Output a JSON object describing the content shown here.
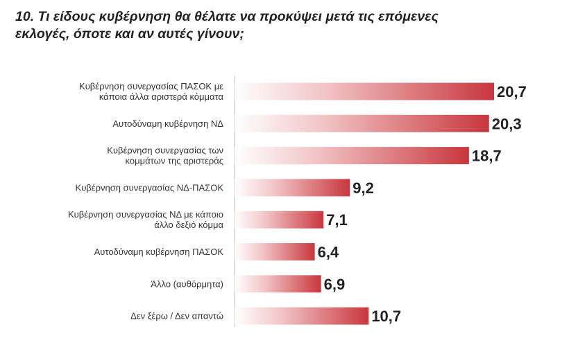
{
  "title_lines": [
    "10. Τι είδους κυβέρνηση θα θέλατε να προκύψει μετά τις επόμενες",
    "εκλογές, όποτε και αν αυτές γίνουν;"
  ],
  "chart_data": {
    "type": "bar",
    "orientation": "horizontal",
    "title": "10. Τι είδους κυβέρνηση θα θέλατε να προκύψει μετά τις επόμενες εκλογές, όποτε και αν αυτές γίνουν;",
    "xlabel": "",
    "ylabel": "",
    "xlim": [
      0,
      20.7
    ],
    "grid": false,
    "legend": "none",
    "bar_color": "#c8373d",
    "categories": [
      [
        "Κυβέρνηση συνεργασίας ΠΑΣΟΚ με",
        "κάποια άλλα αριστερά κόμματα"
      ],
      [
        "Αυτοδύναμη κυβέρνηση ΝΔ"
      ],
      [
        "Κυβέρνηση συνεργασίας των",
        "κομμάτων της αριστεράς"
      ],
      [
        "Κυβέρνηση συνεργασίας ΝΔ-ΠΑΣΟΚ"
      ],
      [
        "Κυβέρνηση συνεργασίας ΝΔ με κάποιο",
        "άλλο δεξιό κόμμα"
      ],
      [
        "Αυτοδύναμη κυβέρνηση ΠΑΣΟΚ"
      ],
      [
        "Άλλο (αυθόρμητα)"
      ],
      [
        "Δεν ξέρω / Δεν απαντώ"
      ]
    ],
    "values": [
      20.7,
      20.3,
      18.7,
      9.2,
      7.1,
      6.4,
      6.9,
      10.7
    ],
    "value_labels": [
      "20,7",
      "20,3",
      "18,7",
      "9,2",
      "7,1",
      "6,4",
      "6,9",
      "10,7"
    ]
  }
}
